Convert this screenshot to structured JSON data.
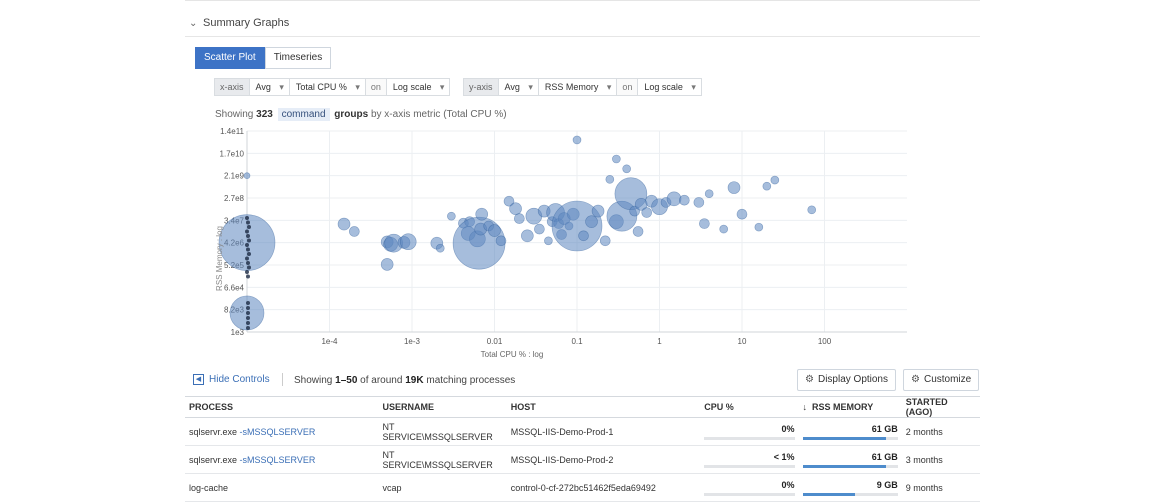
{
  "section": {
    "title": "Summary Graphs"
  },
  "tabs": [
    {
      "label": "Scatter Plot",
      "active": true
    },
    {
      "label": "Timeseries",
      "active": false
    }
  ],
  "xaxis": {
    "label": "x-axis",
    "agg": "Avg",
    "metric": "Total CPU %",
    "on": "on",
    "scale": "Log scale"
  },
  "yaxis": {
    "label": "y-axis",
    "agg": "Avg",
    "metric": "RSS Memory",
    "on": "on",
    "scale": "Log scale"
  },
  "showing": {
    "prefix": "Showing",
    "count": "323",
    "group": "command",
    "word": "groups",
    "suffix": "by x-axis metric (Total CPU %)"
  },
  "chart_data": {
    "type": "scatter",
    "xlabel": "Total CPU % : log",
    "ylabel": "RSS Memory : log",
    "x_scale": "log",
    "y_scale": "log",
    "x_ticks": [
      "1e-4",
      "1e-3",
      "0.01",
      "0.1",
      "1",
      "10",
      "100"
    ],
    "y_ticks": [
      "1.4e11",
      "1.7e10",
      "2.1e9",
      "2.7e8",
      "3.4e7",
      "4.2e6",
      "5.2e5",
      "6.6e4",
      "8.2e3",
      "1e3"
    ],
    "bubble_color": "#5d86bf",
    "points": [
      {
        "x": 1e-05,
        "y": 4200000,
        "r": 28
      },
      {
        "x": 1e-05,
        "y": 6000,
        "r": 17
      },
      {
        "x": 1e-05,
        "y": 2100000000,
        "r": 3
      },
      {
        "x": 0.00015,
        "y": 24000000,
        "r": 6
      },
      {
        "x": 0.0002,
        "y": 12000000,
        "r": 5
      },
      {
        "x": 0.0005,
        "y": 4500000,
        "r": 6
      },
      {
        "x": 0.0005,
        "y": 550000,
        "r": 6
      },
      {
        "x": 0.00055,
        "y": 3600000,
        "r": 7
      },
      {
        "x": 0.0006,
        "y": 4000000,
        "r": 9
      },
      {
        "x": 0.0008,
        "y": 4300000,
        "r": 6
      },
      {
        "x": 0.0009,
        "y": 4600000,
        "r": 8
      },
      {
        "x": 0.002,
        "y": 4000000,
        "r": 6
      },
      {
        "x": 0.0022,
        "y": 2500000,
        "r": 4
      },
      {
        "x": 0.003,
        "y": 50000000,
        "r": 4
      },
      {
        "x": 0.0042,
        "y": 26000000,
        "r": 5
      },
      {
        "x": 0.0048,
        "y": 10000000,
        "r": 7
      },
      {
        "x": 0.005,
        "y": 30000000,
        "r": 5
      },
      {
        "x": 0.0062,
        "y": 6000000,
        "r": 8
      },
      {
        "x": 0.0065,
        "y": 4000000,
        "r": 26
      },
      {
        "x": 0.0068,
        "y": 15000000,
        "r": 6
      },
      {
        "x": 0.007,
        "y": 60000000,
        "r": 6
      },
      {
        "x": 0.0085,
        "y": 20000000,
        "r": 5
      },
      {
        "x": 0.01,
        "y": 13000000,
        "r": 6
      },
      {
        "x": 0.012,
        "y": 5000000,
        "r": 5
      },
      {
        "x": 0.015,
        "y": 200000000,
        "r": 5
      },
      {
        "x": 0.018,
        "y": 100000000,
        "r": 6
      },
      {
        "x": 0.02,
        "y": 40000000,
        "r": 5
      },
      {
        "x": 0.025,
        "y": 8000000,
        "r": 6
      },
      {
        "x": 0.03,
        "y": 50000000,
        "r": 8
      },
      {
        "x": 0.035,
        "y": 15000000,
        "r": 5
      },
      {
        "x": 0.04,
        "y": 80000000,
        "r": 6
      },
      {
        "x": 0.045,
        "y": 5000000,
        "r": 4
      },
      {
        "x": 0.05,
        "y": 30000000,
        "r": 5
      },
      {
        "x": 0.055,
        "y": 70000000,
        "r": 9
      },
      {
        "x": 0.06,
        "y": 25000000,
        "r": 5
      },
      {
        "x": 0.065,
        "y": 9000000,
        "r": 5
      },
      {
        "x": 0.07,
        "y": 40000000,
        "r": 6
      },
      {
        "x": 0.08,
        "y": 20000000,
        "r": 4
      },
      {
        "x": 0.09,
        "y": 60000000,
        "r": 6
      },
      {
        "x": 0.1,
        "y": 20000000,
        "r": 25
      },
      {
        "x": 0.1,
        "y": 60000000000,
        "r": 4
      },
      {
        "x": 0.12,
        "y": 8000000,
        "r": 5
      },
      {
        "x": 0.15,
        "y": 30000000,
        "r": 6
      },
      {
        "x": 0.18,
        "y": 80000000,
        "r": 6
      },
      {
        "x": 0.22,
        "y": 5000000,
        "r": 5
      },
      {
        "x": 0.25,
        "y": 1500000000,
        "r": 4
      },
      {
        "x": 0.3,
        "y": 30000000,
        "r": 7
      },
      {
        "x": 0.35,
        "y": 50000000,
        "r": 15
      },
      {
        "x": 0.3,
        "y": 10000000000,
        "r": 4
      },
      {
        "x": 0.4,
        "y": 4000000000,
        "r": 4
      },
      {
        "x": 0.45,
        "y": 400000000,
        "r": 16
      },
      {
        "x": 0.5,
        "y": 80000000,
        "r": 5
      },
      {
        "x": 0.55,
        "y": 12000000,
        "r": 5
      },
      {
        "x": 0.6,
        "y": 150000000,
        "r": 6
      },
      {
        "x": 0.7,
        "y": 70000000,
        "r": 5
      },
      {
        "x": 0.8,
        "y": 200000000,
        "r": 6
      },
      {
        "x": 1.0,
        "y": 120000000,
        "r": 8
      },
      {
        "x": 1.2,
        "y": 180000000,
        "r": 5
      },
      {
        "x": 1.5,
        "y": 250000000,
        "r": 7
      },
      {
        "x": 2,
        "y": 220000000,
        "r": 5
      },
      {
        "x": 3,
        "y": 180000000,
        "r": 5
      },
      {
        "x": 3.5,
        "y": 25000000,
        "r": 5
      },
      {
        "x": 4,
        "y": 400000000,
        "r": 4
      },
      {
        "x": 6,
        "y": 15000000,
        "r": 4
      },
      {
        "x": 8,
        "y": 700000000,
        "r": 6
      },
      {
        "x": 10,
        "y": 60000000,
        "r": 5
      },
      {
        "x": 16,
        "y": 18000000,
        "r": 4
      },
      {
        "x": 20,
        "y": 800000000,
        "r": 4
      },
      {
        "x": 25,
        "y": 1400000000,
        "r": 4
      },
      {
        "x": 70,
        "y": 90000000,
        "r": 4
      }
    ]
  },
  "controls": {
    "hide_label": "Hide Controls",
    "match_prefix": "Showing",
    "match_range": "1–50",
    "match_mid": "of around",
    "match_total": "19K",
    "match_suffix": "matching processes",
    "display_options": "Display Options",
    "customize": "Customize"
  },
  "table": {
    "columns": [
      "PROCESS",
      "USERNAME",
      "HOST",
      "CPU %",
      "RSS MEMORY",
      "STARTED (AGO)"
    ],
    "sort_icon": "↓",
    "rows": [
      {
        "process": "sqlservr.exe",
        "arg": "-sMSSQLSERVER",
        "user": "NT SERVICE\\MSSQLSERVER",
        "host": "MSSQL-IIS-Demo-Prod-1",
        "cpu": "0%",
        "cpu_frac": 0.0,
        "rss": "61 GB",
        "rss_frac": 0.88,
        "started": "2 months"
      },
      {
        "process": "sqlservr.exe",
        "arg": "-sMSSQLSERVER",
        "user": "NT SERVICE\\MSSQLSERVER",
        "host": "MSSQL-IIS-Demo-Prod-2",
        "cpu": "< 1%",
        "cpu_frac": 0.0,
        "rss": "61 GB",
        "rss_frac": 0.88,
        "started": "3 months"
      },
      {
        "process": "log-cache",
        "arg": "",
        "user": "vcap",
        "host": "control-0-cf-272bc51462f5eda69492",
        "cpu": "0%",
        "cpu_frac": 0.0,
        "rss": "9 GB",
        "rss_frac": 0.55,
        "started": "9 months"
      }
    ]
  }
}
